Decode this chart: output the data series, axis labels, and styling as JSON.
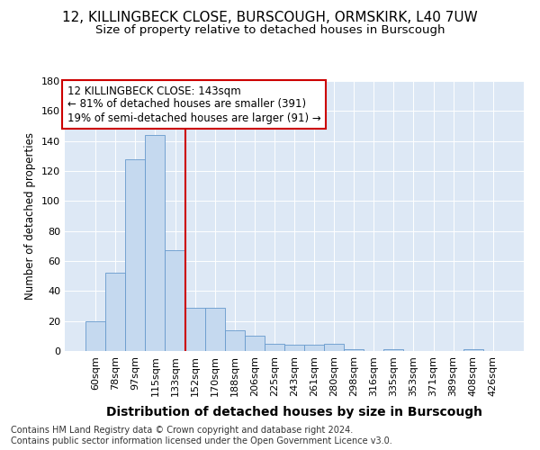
{
  "title1": "12, KILLINGBECK CLOSE, BURSCOUGH, ORMSKIRK, L40 7UW",
  "title2": "Size of property relative to detached houses in Burscough",
  "xlabel": "Distribution of detached houses by size in Burscough",
  "ylabel": "Number of detached properties",
  "categories": [
    "60sqm",
    "78sqm",
    "97sqm",
    "115sqm",
    "133sqm",
    "152sqm",
    "170sqm",
    "188sqm",
    "206sqm",
    "225sqm",
    "243sqm",
    "261sqm",
    "280sqm",
    "298sqm",
    "316sqm",
    "335sqm",
    "353sqm",
    "371sqm",
    "389sqm",
    "408sqm",
    "426sqm"
  ],
  "values": [
    20,
    52,
    128,
    144,
    67,
    29,
    29,
    14,
    10,
    5,
    4,
    4,
    5,
    1,
    0,
    1,
    0,
    0,
    0,
    1,
    0
  ],
  "bar_color": "#c5d9ef",
  "bar_edge_color": "#6699cc",
  "vline_x": 4.5,
  "vline_color": "#cc0000",
  "annotation_text": "12 KILLINGBECK CLOSE: 143sqm\n← 81% of detached houses are smaller (391)\n19% of semi-detached houses are larger (91) →",
  "annotation_box_color": "#ffffff",
  "annotation_box_edge_color": "#cc0000",
  "ylim": [
    0,
    180
  ],
  "yticks": [
    0,
    20,
    40,
    60,
    80,
    100,
    120,
    140,
    160,
    180
  ],
  "bg_color": "#dde8f5",
  "footer_text": "Contains HM Land Registry data © Crown copyright and database right 2024.\nContains public sector information licensed under the Open Government Licence v3.0.",
  "title1_fontsize": 11,
  "title2_fontsize": 9.5,
  "xlabel_fontsize": 10,
  "ylabel_fontsize": 8.5,
  "tick_fontsize": 8,
  "annotation_fontsize": 8.5,
  "footer_fontsize": 7
}
